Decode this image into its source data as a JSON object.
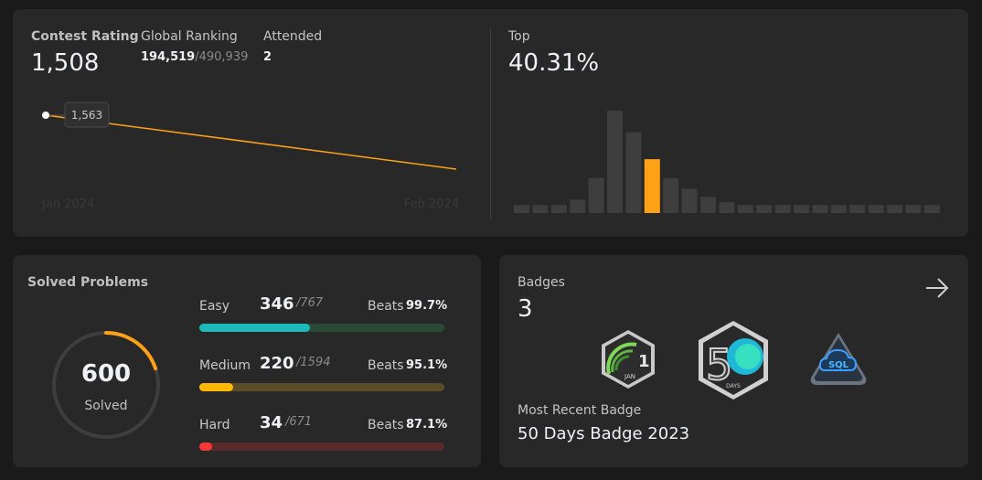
{
  "contest": {
    "rating_label": "Contest Rating",
    "rating_value": "1,508",
    "global_ranking_label": "Global Ranking",
    "global_ranking_value": "194,519",
    "global_ranking_total": "/490,939",
    "attended_label": "Attended",
    "attended_value": "2",
    "tooltip_value": "1,563",
    "x_start_label": "Jan 2024",
    "x_end_label": "Feb 2024"
  },
  "top": {
    "label": "Top",
    "value": "40.31%"
  },
  "chart_data": [
    {
      "type": "line",
      "title": "Contest Rating",
      "x": [
        "Jan 2024",
        "Feb 2024"
      ],
      "series": [
        {
          "name": "rating",
          "values": [
            1563,
            1508
          ]
        }
      ],
      "annotations": [
        {
          "x": "Jan 2024",
          "text": "1,563"
        }
      ],
      "ylim": [
        1480,
        1580
      ]
    },
    {
      "type": "bar",
      "title": "Top 40.31%",
      "values": [
        3,
        3,
        3,
        5,
        13,
        38,
        30,
        20,
        13,
        9,
        6,
        4,
        3,
        3,
        3,
        3,
        3,
        3,
        3,
        3,
        3,
        3,
        3
      ],
      "highlight_index": 7,
      "colors": {
        "default": "#3e3e3e",
        "highlight": "#ffa116"
      }
    }
  ],
  "solved": {
    "title": "Solved Problems",
    "count": "600",
    "count_label": "Solved",
    "easy": {
      "label": "Easy",
      "solved": "346",
      "total": "/767",
      "beats_label": "Beats",
      "beats": "99.7%",
      "solved_num": 346,
      "total_num": 767
    },
    "medium": {
      "label": "Medium",
      "solved": "220",
      "total": "/1594",
      "beats_label": "Beats",
      "beats": "95.1%",
      "solved_num": 220,
      "total_num": 1594
    },
    "hard": {
      "label": "Hard",
      "solved": "34",
      "total": "/671",
      "beats_label": "Beats",
      "beats": "87.1%",
      "solved_num": 34,
      "total_num": 671
    },
    "ring_fraction": 0.199
  },
  "badges": {
    "title": "Badges",
    "count": "3",
    "items": [
      {
        "icon": "jan-badge-icon",
        "num": "1",
        "text": "JAN"
      },
      {
        "icon": "fifty-days-badge-icon",
        "num": "5",
        "text": "DAYS"
      },
      {
        "icon": "sql-badge-icon",
        "text": "SQL"
      }
    ],
    "recent_label": "Most Recent Badge",
    "recent_name": "50 Days Badge 2023"
  },
  "colors": {
    "accent": "#ffa116",
    "easy": "#1cbaba",
    "easy_track": "#2b4a36",
    "medium": "#ffb700",
    "medium_track": "#5a4c26",
    "hard": "#f63737",
    "hard_track": "#5a2a2a"
  }
}
